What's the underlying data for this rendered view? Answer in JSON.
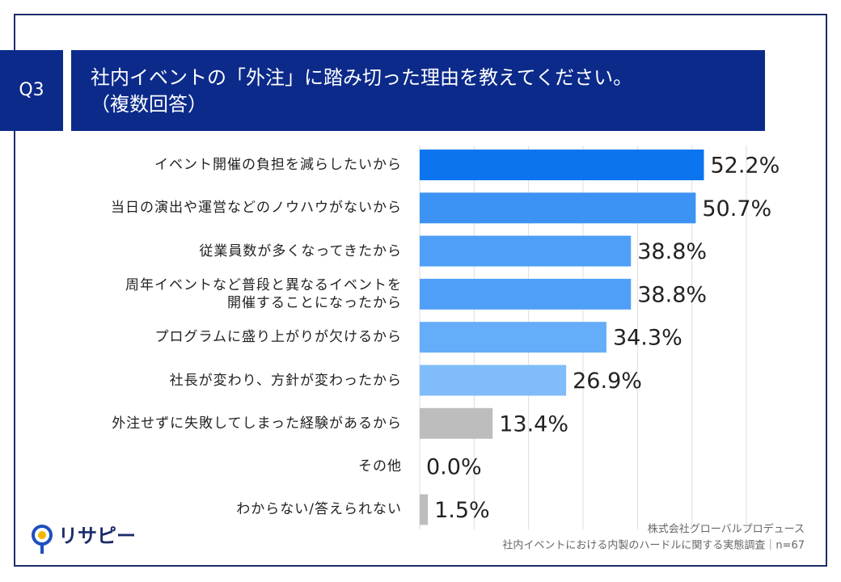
{
  "question": "Q3",
  "chart_data": {
    "type": "barh",
    "title": "社内イベントの「外注」に踏み切った理由を教えてください。",
    "subtitle": "（複数回答）",
    "categories": [
      "イベント開催の負担を減らしたいから",
      "当日の演出や運営などのノウハウがないから",
      "従業員数が多くなってきたから",
      "周年イベントなど普段と異なるイベントを\n開催することになったから",
      "プログラムに盛り上がりが欠けるから",
      "社長が変わり、方針が変わったから",
      "外注せずに失敗してしまった経験があるから",
      "その他",
      "わからない/答えられない"
    ],
    "values": [
      52.2,
      50.7,
      38.8,
      38.8,
      34.3,
      26.9,
      13.4,
      0.0,
      1.5
    ],
    "value_labels": [
      "52.2%",
      "50.7%",
      "38.8%",
      "38.8%",
      "34.3%",
      "26.9%",
      "13.4%",
      "0.0%",
      "1.5%"
    ],
    "colors": [
      "#0b74ee",
      "#3d93f4",
      "#4f9ff8",
      "#4f9ff8",
      "#66adf9",
      "#80bcfa",
      "#bdbdbd",
      "#bdbdbd",
      "#bdbdbd"
    ],
    "xlim": [
      0,
      60
    ],
    "xticks": [
      0,
      10,
      20,
      30,
      40,
      50,
      60
    ],
    "grid": true
  },
  "footer": {
    "company": "株式会社グローバルプロデュース",
    "survey": "社内イベントにおける内製のハードルに関する実態調査｜n=67",
    "logo": "リサピー"
  }
}
